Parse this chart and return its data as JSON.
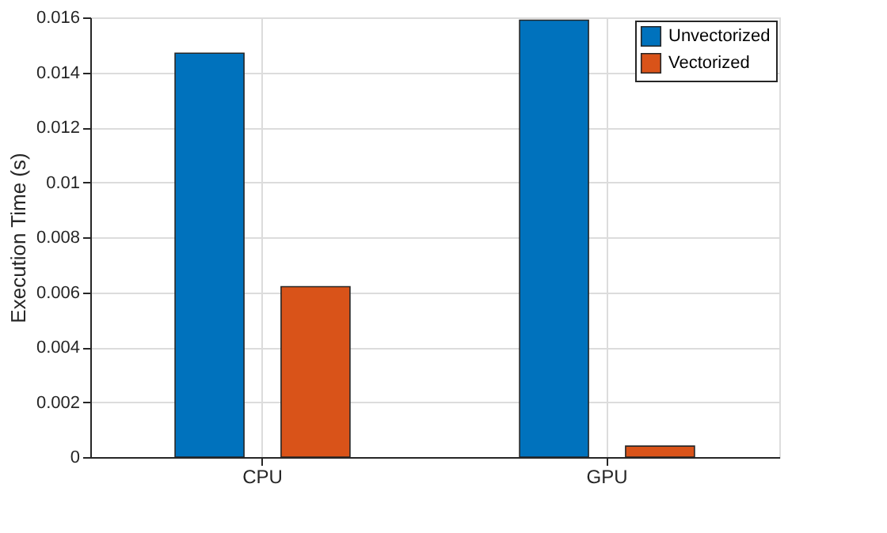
{
  "chart_data": {
    "type": "bar",
    "ylabel": "Execution Time (s)",
    "categories": [
      "CPU",
      "GPU"
    ],
    "series": [
      {
        "name": "Unvectorized",
        "color": "#0072bd",
        "values": [
          0.0147,
          0.0159
        ]
      },
      {
        "name": "Vectorized",
        "color": "#d95319",
        "values": [
          0.0062,
          0.0004
        ]
      }
    ],
    "ylim": [
      0,
      0.016
    ],
    "yticks": [
      0,
      0.002,
      0.004,
      0.006,
      0.008,
      0.01,
      0.012,
      0.014,
      0.016
    ],
    "grid": true,
    "legend": "top right"
  }
}
